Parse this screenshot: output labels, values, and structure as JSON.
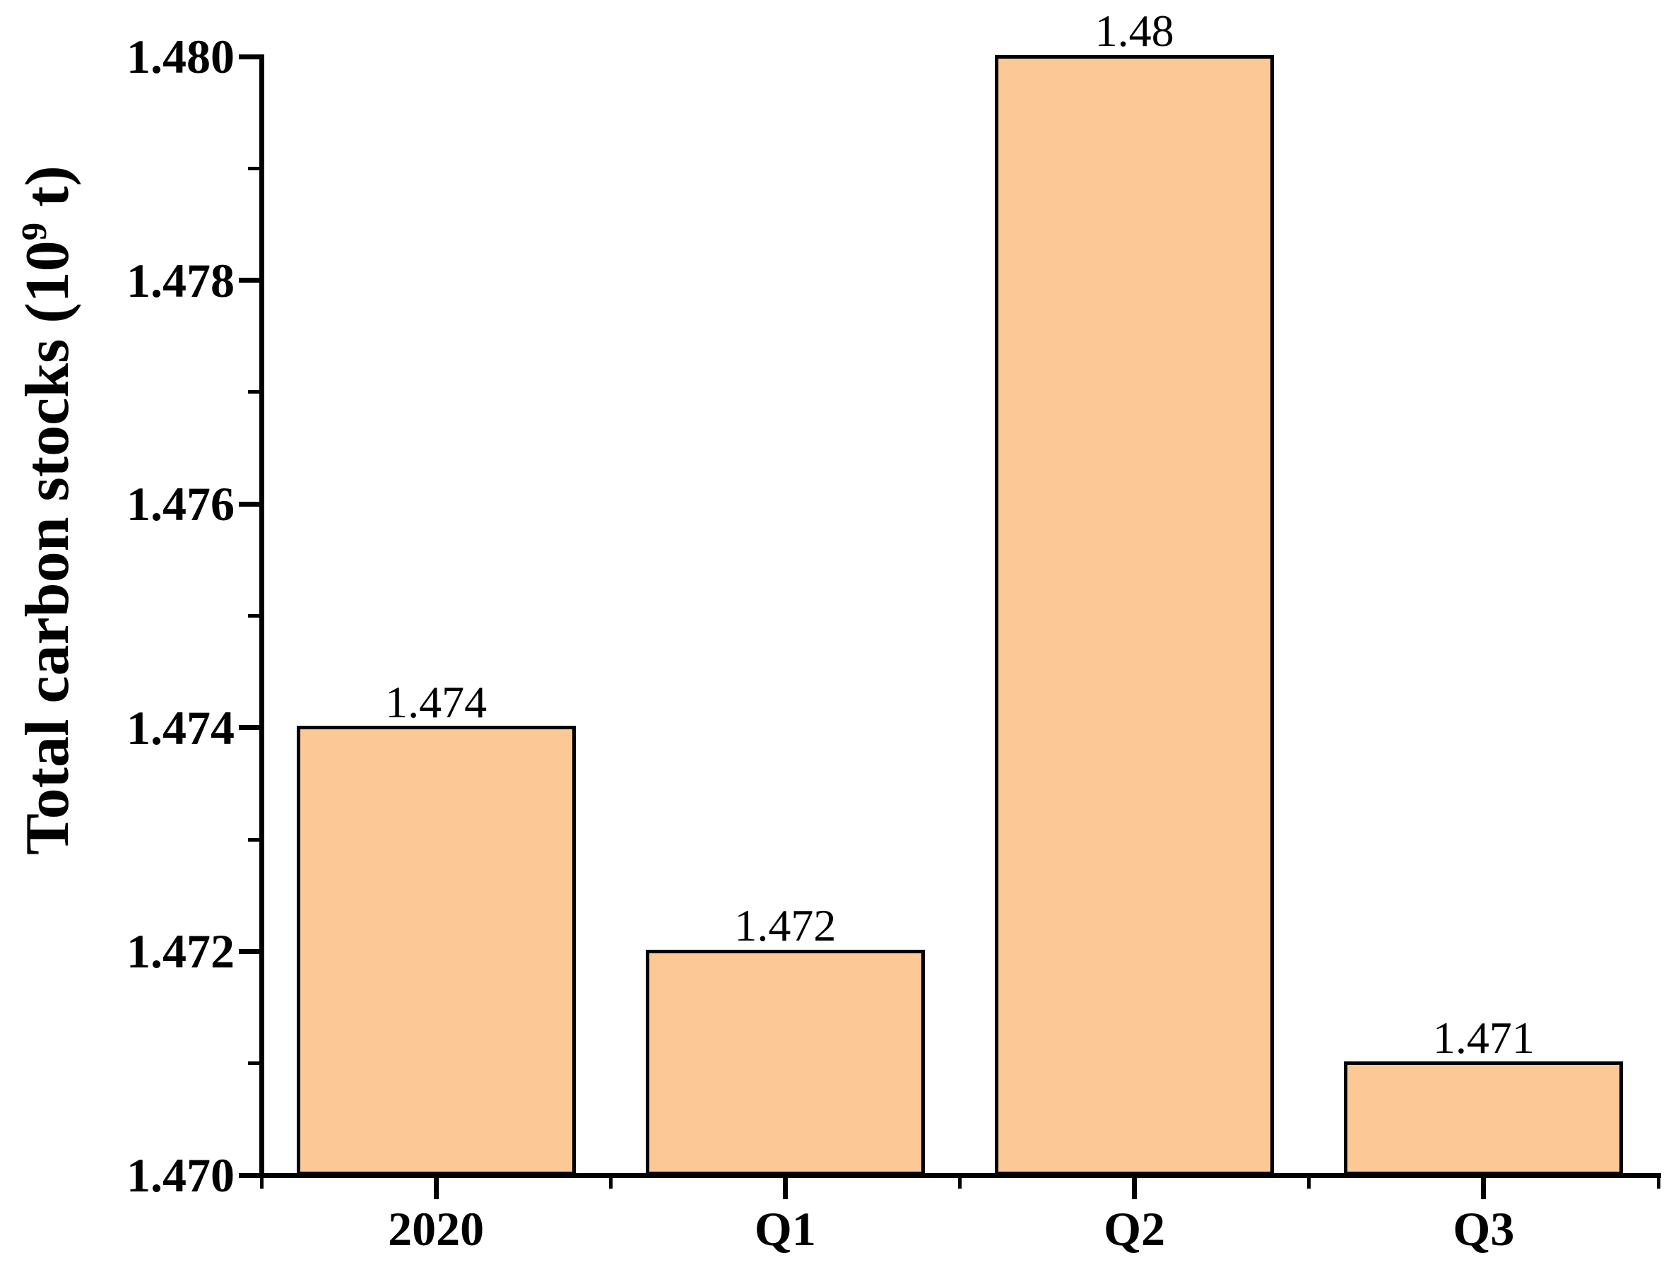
{
  "figure": {
    "background": "#FFFFFF",
    "ylabel_prefix": "Total carbon stocks (10",
    "ylabel_sup": "9",
    "ylabel_suffix": " t)"
  },
  "chart_data": {
    "type": "bar",
    "title": "",
    "xlabel": "",
    "ylabel": "Total carbon stocks (10^9 t)",
    "categories": [
      "2020",
      "Q1",
      "Q2",
      "Q3"
    ],
    "values": [
      1.474,
      1.472,
      1.48,
      1.471
    ],
    "bar_labels": [
      "1.474",
      "1.472",
      "1.48",
      "1.471"
    ],
    "ylim": [
      1.47,
      1.48
    ],
    "ytick_values": [
      1.47,
      1.472,
      1.474,
      1.476,
      1.478,
      1.48
    ],
    "ytick_labels": [
      "1.470",
      "1.472",
      "1.474",
      "1.476",
      "1.478",
      "1.480"
    ],
    "minor_tick_step": 0.001,
    "grid": false,
    "legend": false,
    "colors": {
      "bar_fill": "#FBC896",
      "bar_border": "#000000",
      "axis": "#000000",
      "text": "#000000"
    }
  }
}
